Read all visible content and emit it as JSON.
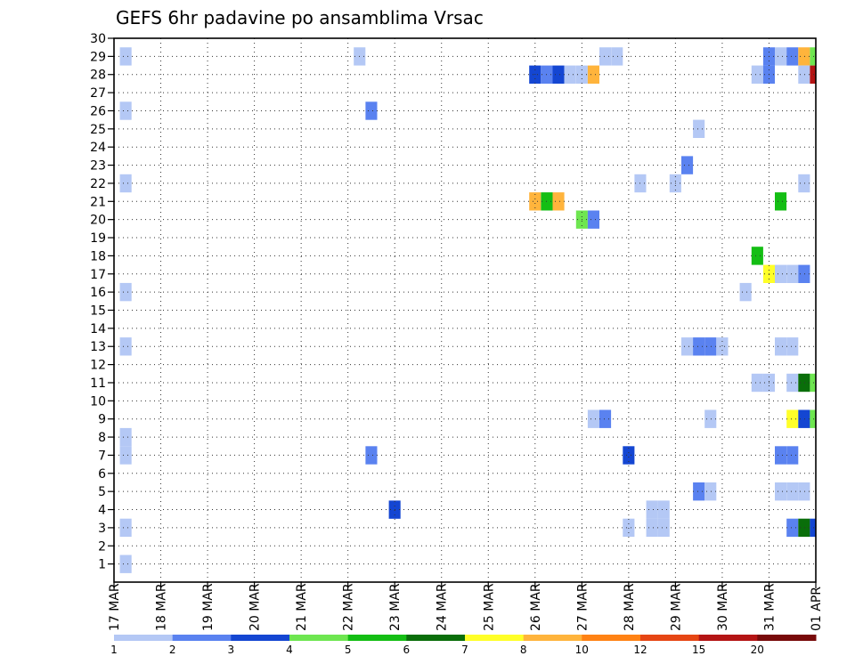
{
  "chart_data": {
    "type": "heatmap",
    "title": "GEFS 6hr padavine po ansamblima Vrsac",
    "xlabel": "",
    "ylabel": "",
    "x_ticks": [
      "17 MAR",
      "18 MAR",
      "19 MAR",
      "20 MAR",
      "21 MAR",
      "22 MAR",
      "23 MAR",
      "24 MAR",
      "25 MAR",
      "26 MAR",
      "27 MAR",
      "28 MAR",
      "29 MAR",
      "30 MAR",
      "31 MAR",
      "01 APR"
    ],
    "x_range": [
      0,
      15.0
    ],
    "y_ticks": [
      1,
      2,
      3,
      4,
      5,
      6,
      7,
      8,
      9,
      10,
      11,
      12,
      13,
      14,
      15,
      16,
      17,
      18,
      19,
      20,
      21,
      22,
      23,
      24,
      25,
      26,
      27,
      28,
      29,
      30
    ],
    "y_range": [
      0,
      30
    ],
    "grid": true,
    "legend": {
      "placement": "bottom",
      "labels": [
        "1",
        "2",
        "3",
        "4",
        "5",
        "6",
        "7",
        "8",
        "10",
        "12",
        "15",
        "20"
      ],
      "colors": [
        "#b4c8f5",
        "#5a82f0",
        "#1446d2",
        "#6ee650",
        "#14be14",
        "#0a6e0a",
        "#ffff28",
        "#ffb43c",
        "#ff8214",
        "#e64614",
        "#b41414",
        "#780a0a"
      ]
    },
    "cells": [
      {
        "t": 0.25,
        "m": 29,
        "c": "#b4c8f5"
      },
      {
        "t": 5.25,
        "m": 29,
        "c": "#b4c8f5"
      },
      {
        "t": 10.5,
        "m": 29,
        "c": "#b4c8f5"
      },
      {
        "t": 10.75,
        "m": 29,
        "c": "#b4c8f5"
      },
      {
        "t": 14.0,
        "m": 29,
        "c": "#5a82f0"
      },
      {
        "t": 14.25,
        "m": 29,
        "c": "#b4c8f5"
      },
      {
        "t": 14.5,
        "m": 29,
        "c": "#5a82f0"
      },
      {
        "t": 14.75,
        "m": 29,
        "c": "#ffb43c"
      },
      {
        "t": 15.0,
        "m": 29,
        "c": "#6ee650"
      },
      {
        "t": 9.0,
        "m": 28,
        "c": "#1446d2"
      },
      {
        "t": 9.25,
        "m": 28,
        "c": "#5a82f0"
      },
      {
        "t": 9.5,
        "m": 28,
        "c": "#1446d2"
      },
      {
        "t": 9.75,
        "m": 28,
        "c": "#b4c8f5"
      },
      {
        "t": 10.0,
        "m": 28,
        "c": "#b4c8f5"
      },
      {
        "t": 10.25,
        "m": 28,
        "c": "#ffb43c"
      },
      {
        "t": 13.75,
        "m": 28,
        "c": "#b4c8f5"
      },
      {
        "t": 14.0,
        "m": 28,
        "c": "#5a82f0"
      },
      {
        "t": 14.75,
        "m": 28,
        "c": "#b4c8f5"
      },
      {
        "t": 15.0,
        "m": 28,
        "c": "#b41414"
      },
      {
        "t": 0.25,
        "m": 26,
        "c": "#b4c8f5"
      },
      {
        "t": 5.5,
        "m": 26,
        "c": "#5a82f0"
      },
      {
        "t": 12.5,
        "m": 25,
        "c": "#b4c8f5"
      },
      {
        "t": 12.25,
        "m": 23,
        "c": "#5a82f0"
      },
      {
        "t": 0.25,
        "m": 22,
        "c": "#b4c8f5"
      },
      {
        "t": 11.25,
        "m": 22,
        "c": "#b4c8f5"
      },
      {
        "t": 12.0,
        "m": 22,
        "c": "#b4c8f5"
      },
      {
        "t": 14.75,
        "m": 22,
        "c": "#b4c8f5"
      },
      {
        "t": 9.0,
        "m": 21,
        "c": "#ffb43c"
      },
      {
        "t": 9.25,
        "m": 21,
        "c": "#14be14"
      },
      {
        "t": 9.5,
        "m": 21,
        "c": "#ffb43c"
      },
      {
        "t": 14.25,
        "m": 21,
        "c": "#14be14"
      },
      {
        "t": 10.0,
        "m": 20,
        "c": "#6ee650"
      },
      {
        "t": 10.25,
        "m": 20,
        "c": "#5a82f0"
      },
      {
        "t": 13.75,
        "m": 18,
        "c": "#14be14"
      },
      {
        "t": 14.0,
        "m": 17,
        "c": "#ffff28"
      },
      {
        "t": 14.25,
        "m": 17,
        "c": "#b4c8f5"
      },
      {
        "t": 14.5,
        "m": 17,
        "c": "#b4c8f5"
      },
      {
        "t": 14.75,
        "m": 17,
        "c": "#5a82f0"
      },
      {
        "t": 0.25,
        "m": 16,
        "c": "#b4c8f5"
      },
      {
        "t": 13.5,
        "m": 16,
        "c": "#b4c8f5"
      },
      {
        "t": 0.25,
        "m": 13,
        "c": "#b4c8f5"
      },
      {
        "t": 12.25,
        "m": 13,
        "c": "#b4c8f5"
      },
      {
        "t": 12.5,
        "m": 13,
        "c": "#5a82f0"
      },
      {
        "t": 12.75,
        "m": 13,
        "c": "#5a82f0"
      },
      {
        "t": 13.0,
        "m": 13,
        "c": "#b4c8f5"
      },
      {
        "t": 14.25,
        "m": 13,
        "c": "#b4c8f5"
      },
      {
        "t": 14.5,
        "m": 13,
        "c": "#b4c8f5"
      },
      {
        "t": 13.75,
        "m": 11,
        "c": "#b4c8f5"
      },
      {
        "t": 14.0,
        "m": 11,
        "c": "#b4c8f5"
      },
      {
        "t": 14.5,
        "m": 11,
        "c": "#b4c8f5"
      },
      {
        "t": 14.75,
        "m": 11,
        "c": "#0a6e0a"
      },
      {
        "t": 15.0,
        "m": 11,
        "c": "#6ee650"
      },
      {
        "t": 10.25,
        "m": 9,
        "c": "#b4c8f5"
      },
      {
        "t": 10.5,
        "m": 9,
        "c": "#5a82f0"
      },
      {
        "t": 12.75,
        "m": 9,
        "c": "#b4c8f5"
      },
      {
        "t": 14.5,
        "m": 9,
        "c": "#ffff28"
      },
      {
        "t": 14.75,
        "m": 9,
        "c": "#1446d2"
      },
      {
        "t": 15.0,
        "m": 9,
        "c": "#6ee650"
      },
      {
        "t": 0.25,
        "m": 8,
        "c": "#b4c8f5"
      },
      {
        "t": 0.25,
        "m": 7,
        "c": "#b4c8f5"
      },
      {
        "t": 5.5,
        "m": 7,
        "c": "#5a82f0"
      },
      {
        "t": 11.0,
        "m": 7,
        "c": "#1446d2"
      },
      {
        "t": 14.25,
        "m": 7,
        "c": "#5a82f0"
      },
      {
        "t": 14.5,
        "m": 7,
        "c": "#5a82f0"
      },
      {
        "t": 12.5,
        "m": 5,
        "c": "#5a82f0"
      },
      {
        "t": 12.75,
        "m": 5,
        "c": "#b4c8f5"
      },
      {
        "t": 14.25,
        "m": 5,
        "c": "#b4c8f5"
      },
      {
        "t": 14.5,
        "m": 5,
        "c": "#b4c8f5"
      },
      {
        "t": 14.75,
        "m": 5,
        "c": "#b4c8f5"
      },
      {
        "t": 6.0,
        "m": 4,
        "c": "#1446d2"
      },
      {
        "t": 11.5,
        "m": 4,
        "c": "#b4c8f5"
      },
      {
        "t": 11.75,
        "m": 4,
        "c": "#b4c8f5"
      },
      {
        "t": 0.25,
        "m": 3,
        "c": "#b4c8f5"
      },
      {
        "t": 11.0,
        "m": 3,
        "c": "#b4c8f5"
      },
      {
        "t": 11.5,
        "m": 3,
        "c": "#b4c8f5"
      },
      {
        "t": 11.75,
        "m": 3,
        "c": "#b4c8f5"
      },
      {
        "t": 14.5,
        "m": 3,
        "c": "#5a82f0"
      },
      {
        "t": 14.75,
        "m": 3,
        "c": "#0a6e0a"
      },
      {
        "t": 15.0,
        "m": 3,
        "c": "#1446d2"
      },
      {
        "t": 0.25,
        "m": 1,
        "c": "#b4c8f5"
      }
    ]
  }
}
